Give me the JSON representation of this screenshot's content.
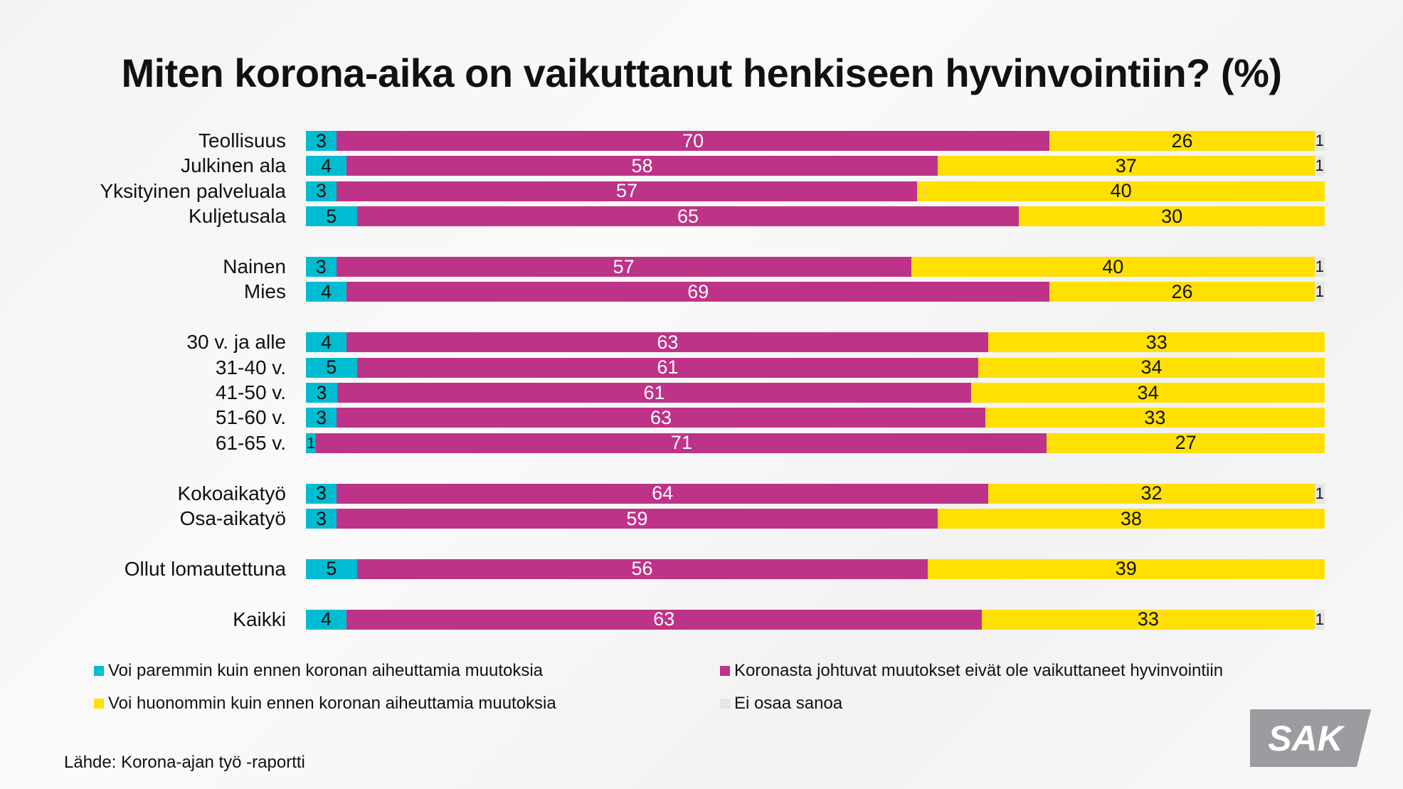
{
  "chart_data": {
    "type": "bar",
    "orientation": "horizontal",
    "stacked": true,
    "title": "Miten korona-aika on vaikuttanut henkiseen hyvinvointiin? (%)",
    "categories": [
      "Teollisuus",
      "Julkinen ala",
      "Yksityinen palveluala",
      "Kuljetusala",
      "Nainen",
      "Mies",
      "30 v. ja alle",
      "31-40 v.",
      "41-50 v.",
      "51-60 v.",
      "61-65 v.",
      "Kokoaikatyö",
      "Osa-aikatyö",
      "Ollut lomautettuna",
      "Kaikki"
    ],
    "groups": [
      [
        0,
        1,
        2,
        3
      ],
      [
        4,
        5
      ],
      [
        6,
        7,
        8,
        9,
        10
      ],
      [
        11,
        12
      ],
      [
        13
      ],
      [
        14
      ]
    ],
    "series": [
      {
        "name": "Voi paremmin kuin ennen koronan aiheuttamia muutoksia",
        "color": "#00bcd0",
        "text_color": "#111111",
        "values": [
          3,
          4,
          3,
          5,
          3,
          4,
          4,
          5,
          3,
          3,
          1,
          3,
          3,
          5,
          4
        ]
      },
      {
        "name": "Koronasta johtuvat muutokset eivät ole vaikuttaneet hyvinvointiin",
        "color": "#bd3388",
        "text_color": "#ffffff",
        "values": [
          70,
          58,
          57,
          65,
          57,
          69,
          63,
          61,
          61,
          63,
          71,
          64,
          59,
          56,
          63
        ]
      },
      {
        "name": "Voi huonommin kuin ennen koronan aiheuttamia muutoksia",
        "color": "#ffe000",
        "text_color": "#111111",
        "values": [
          26,
          37,
          40,
          30,
          40,
          26,
          33,
          34,
          34,
          33,
          27,
          32,
          38,
          39,
          33
        ]
      },
      {
        "name": "Ei osaa sanoa",
        "color": "#e6e6e6",
        "text_color": "#111111",
        "values": [
          1,
          1,
          0,
          0,
          1,
          1,
          0,
          0,
          0,
          0,
          0,
          1,
          0,
          0,
          1
        ]
      }
    ],
    "legend_placement": "bottom",
    "xlim": [
      0,
      100
    ],
    "grid": false
  },
  "source": "Lähde: Korona-ajan työ -raportti",
  "logo_text": "SAK"
}
